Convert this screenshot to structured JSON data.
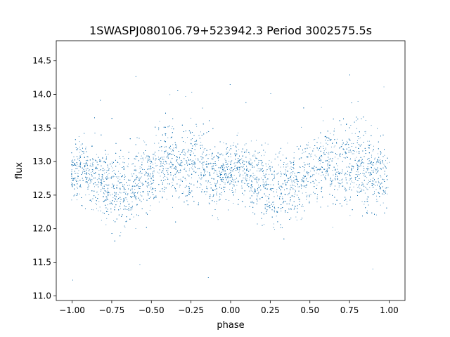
{
  "chart_data": {
    "type": "scatter",
    "title": "1SWASPJ080106.79+523942.3 Period 3002575.5s",
    "xlabel": "phase",
    "ylabel": "flux",
    "xlim": [
      -1.1,
      1.1
    ],
    "ylim": [
      10.93,
      14.8
    ],
    "xticks": [
      -1.0,
      -0.75,
      -0.5,
      -0.25,
      0.0,
      0.25,
      0.5,
      0.75,
      1.0
    ],
    "xtick_labels": [
      "−1.00",
      "−0.75",
      "−0.50",
      "−0.25",
      "0.00",
      "0.25",
      "0.50",
      "0.75",
      "1.00"
    ],
    "yticks": [
      11.0,
      11.5,
      12.0,
      12.5,
      13.0,
      13.5,
      14.0,
      14.5
    ],
    "ytick_labels": [
      "11.0",
      "11.5",
      "12.0",
      "12.5",
      "13.0",
      "13.5",
      "14.0",
      "14.5"
    ],
    "grid": false,
    "marker_color": "#1f77b4",
    "series": [
      {
        "profile_phase": [
          -1.0,
          -0.95,
          -0.9,
          -0.85,
          -0.8,
          -0.75,
          -0.7,
          -0.65,
          -0.6,
          -0.55,
          -0.5,
          -0.45,
          -0.4,
          -0.35,
          -0.3,
          -0.25,
          -0.2,
          -0.15,
          -0.1,
          -0.05,
          0.0
        ],
        "profile_mean_flux": [
          12.85,
          12.9,
          12.85,
          12.7,
          12.65,
          12.6,
          12.6,
          12.65,
          12.7,
          12.75,
          12.8,
          12.95,
          13.0,
          12.95,
          12.9,
          13.0,
          13.0,
          12.85,
          12.8,
          12.85,
          12.85
        ],
        "profile_spread": [
          0.25,
          0.3,
          0.25,
          0.3,
          0.35,
          0.35,
          0.4,
          0.35,
          0.35,
          0.35,
          0.3,
          0.3,
          0.35,
          0.35,
          0.3,
          0.35,
          0.35,
          0.4,
          0.35,
          0.3,
          0.25
        ],
        "phase_period": 1.0,
        "point_count": 9000
      }
    ]
  }
}
